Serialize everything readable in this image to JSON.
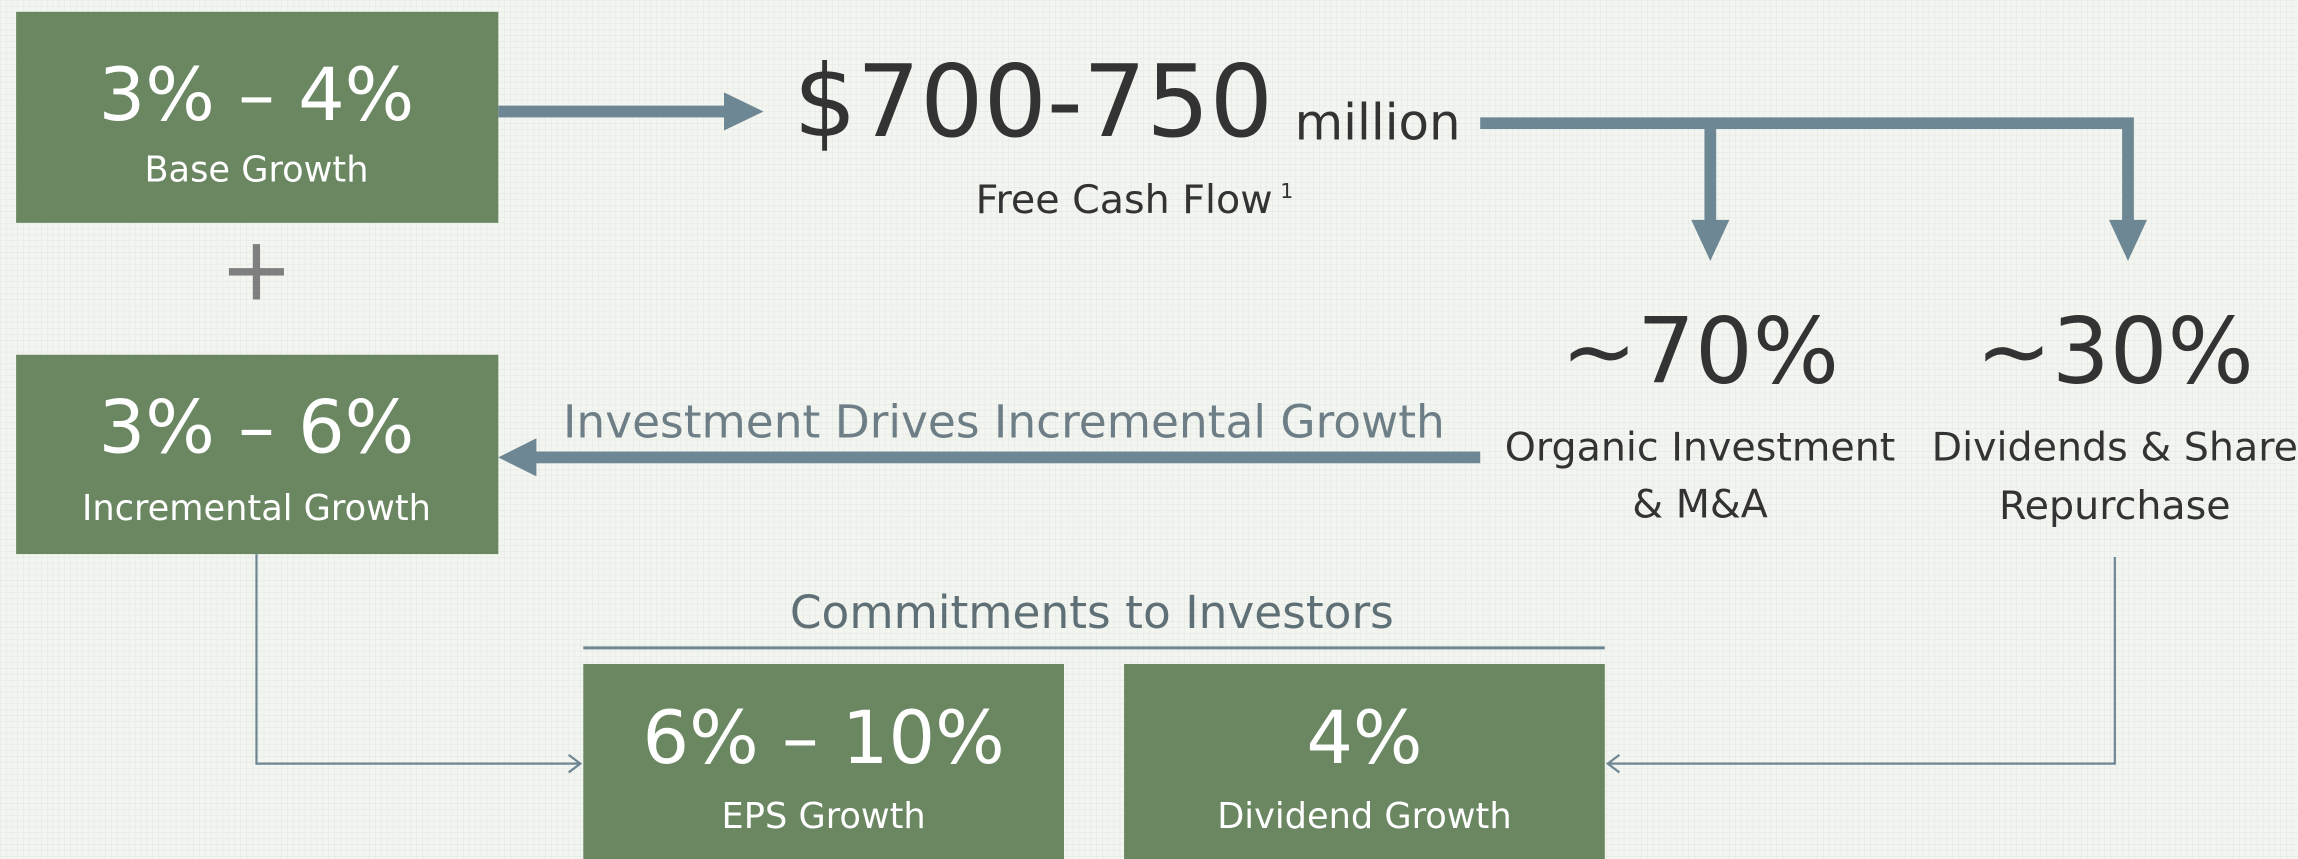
{
  "base": {
    "value": "3% – 4%",
    "label": "Base Growth"
  },
  "plus": "+",
  "cash_flow": {
    "amount": "$700-750",
    "unit": "million",
    "label": "Free Cash Flow",
    "footnote": "1"
  },
  "allocation": [
    {
      "value": "~70%",
      "label_lines": [
        "Organic Investment",
        "& M&A"
      ]
    },
    {
      "value": "~30%",
      "label_lines": [
        "Dividends & Share",
        "Repurchase"
      ]
    }
  ],
  "incremental": {
    "value": "3% – 6%",
    "label": "Incremental Growth"
  },
  "arrow_label": "Investment Drives Incremental Growth",
  "commitments": {
    "title": "Commitments to Investors",
    "boxes": [
      {
        "value": "6% – 10%",
        "label": "EPS Growth"
      },
      {
        "value": "4%",
        "label": "Dividend Growth"
      }
    ]
  }
}
